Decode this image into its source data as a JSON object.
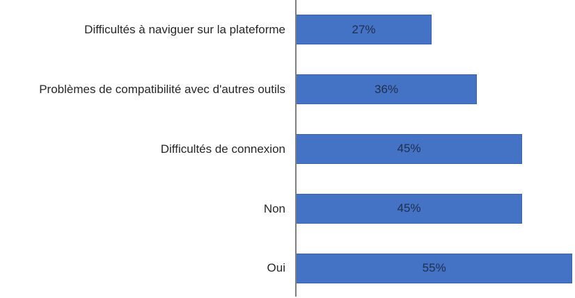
{
  "chart_data": {
    "type": "bar",
    "orientation": "horizontal",
    "title": "",
    "xlabel": "",
    "ylabel": "",
    "grid": false,
    "legend": "none",
    "categories": [
      "Difficultés à naviguer sur la plateforme",
      "Problèmes de compatibilité avec d'autres outils",
      "Difficultés de connexion",
      "Non",
      "Oui"
    ],
    "values": [
      27,
      36,
      45,
      45,
      55
    ],
    "value_labels": [
      "27%",
      "36%",
      "45%",
      "45%",
      "55%"
    ],
    "xlim": [
      0,
      55.5
    ],
    "colors": {
      "bar_fill": "#4472C4",
      "bar_border": "#3A62B0",
      "value_label": "#203050",
      "category_label": "#262626",
      "axis_line": "#7F7F7F",
      "background": "#FFFFFF"
    }
  }
}
